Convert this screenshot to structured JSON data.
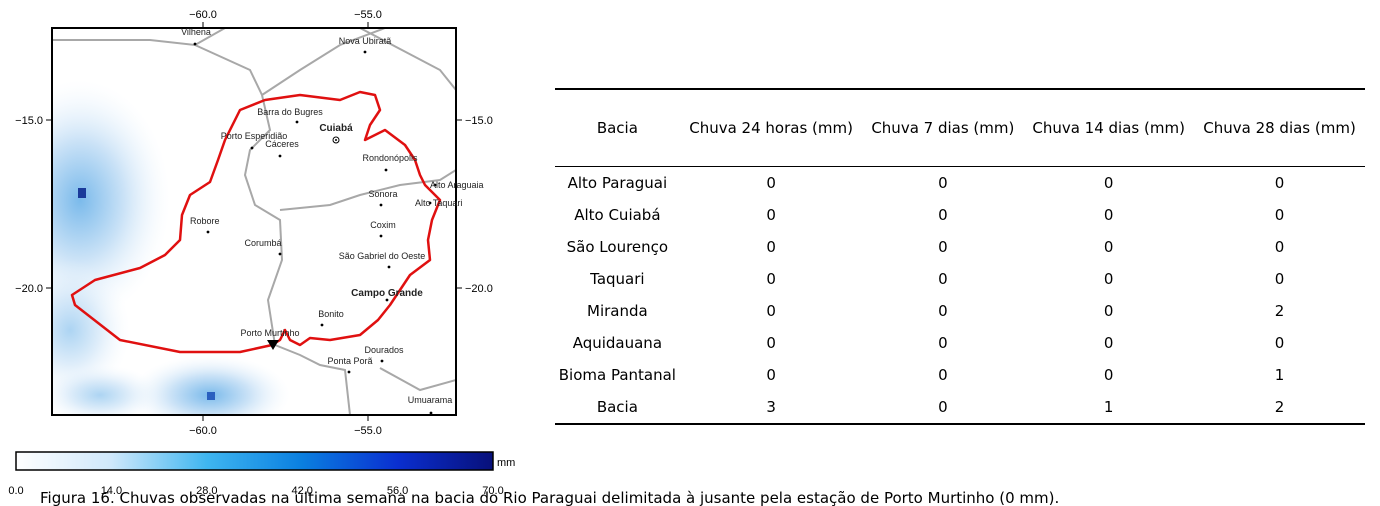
{
  "map": {
    "lon_ticks": [
      {
        "value": -60,
        "label": "−60.0"
      },
      {
        "value": -55,
        "label": "−55.0"
      }
    ],
    "lat_ticks": [
      {
        "value": -15,
        "label": "−15.0"
      },
      {
        "value": -20,
        "label": "−20.0"
      }
    ],
    "places": [
      "Vilhena",
      "Nova Ubiratã",
      "Barra do Bugres",
      "Porto Esperidião",
      "Cuiabá",
      "Cáceres",
      "Rondonópolis",
      "Alto Araguaia",
      "Sonora",
      "Alto Taquari",
      "Robore",
      "Corumbá",
      "Coxim",
      "São Gabriel do Oeste",
      "Campo Grande",
      "Bonito",
      "Porto Murtinho",
      "Dourados",
      "Ponta Porã",
      "Umuarama"
    ],
    "colorbar": {
      "ticks": [
        {
          "value": 0,
          "label": "0.0"
        },
        {
          "value": 14,
          "label": "14.0"
        },
        {
          "value": 28,
          "label": "28.0"
        },
        {
          "value": 42,
          "label": "42.0"
        },
        {
          "value": 56,
          "label": "56.0"
        },
        {
          "value": 70,
          "label": "70.0"
        }
      ],
      "range": [
        0,
        70
      ],
      "unit": "mm"
    }
  },
  "table": {
    "header": [
      "Bacia",
      "Chuva 24 horas (mm)",
      "Chuva 7 dias (mm)",
      "Chuva 14 dias (mm)",
      "Chuva 28 dias (mm)"
    ],
    "rows": [
      [
        "Alto Paraguai",
        0,
        0,
        0,
        0
      ],
      [
        "Alto Cuiabá",
        0,
        0,
        0,
        0
      ],
      [
        "São Lourenço",
        0,
        0,
        0,
        0
      ],
      [
        "Taquari",
        0,
        0,
        0,
        0
      ],
      [
        "Miranda",
        0,
        0,
        0,
        2
      ],
      [
        "Aquidauana",
        0,
        0,
        0,
        0
      ],
      [
        "Bioma Pantanal",
        0,
        0,
        0,
        1
      ],
      [
        "Bacia",
        3,
        0,
        1,
        2
      ]
    ]
  },
  "caption": "Figura 16. Chuvas observadas na última semana na bacia do Rio Paraguai delimitada à jusante pela estação de Porto Murtinho (0 mm)."
}
